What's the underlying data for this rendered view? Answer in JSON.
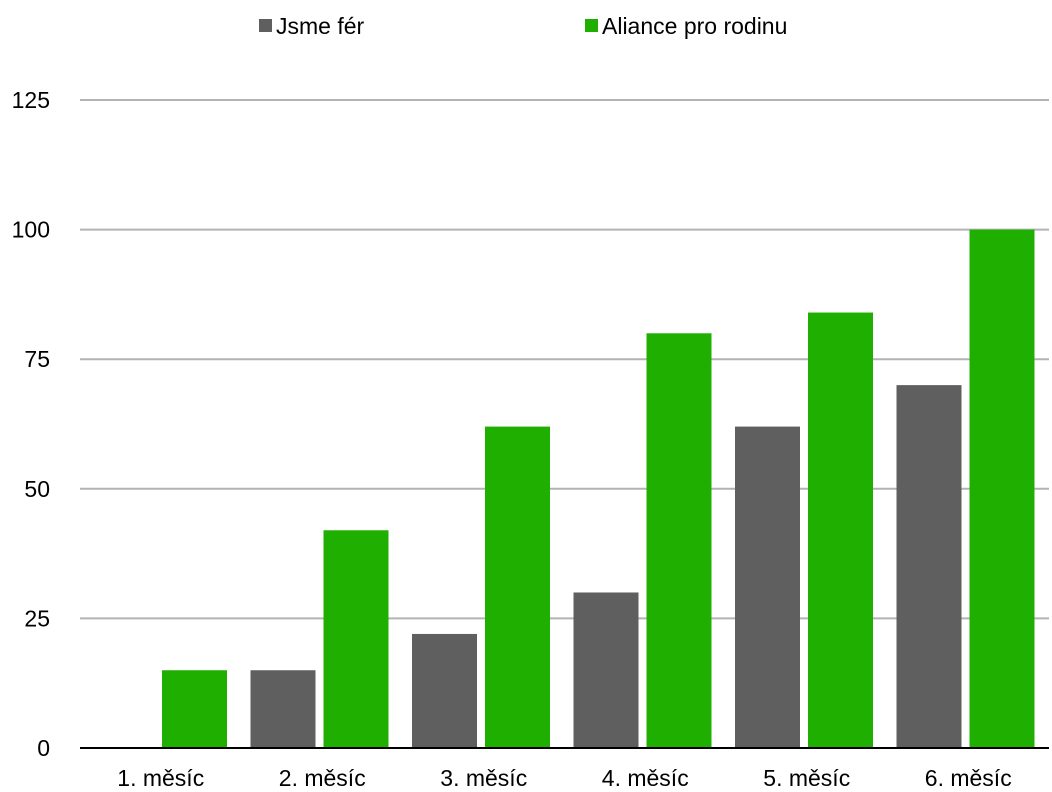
{
  "chart_data": {
    "type": "bar",
    "categories": [
      "1. měsíc",
      "2. měsíc",
      "3. měsíc",
      "4. měsíc",
      "5. měsíc",
      "6. měsíc"
    ],
    "series": [
      {
        "name": "Jsme fér",
        "color": "#5f5f5f",
        "values": [
          0,
          15,
          22,
          30,
          62,
          70
        ]
      },
      {
        "name": "Aliance pro rodinu",
        "color": "#1faf00",
        "values": [
          15,
          42,
          62,
          80,
          84,
          100
        ]
      }
    ],
    "yticks": [
      "0",
      "25",
      "50",
      "75",
      "100",
      "125"
    ],
    "ylim": [
      0,
      125
    ],
    "grid": true,
    "legend_position": "top"
  }
}
